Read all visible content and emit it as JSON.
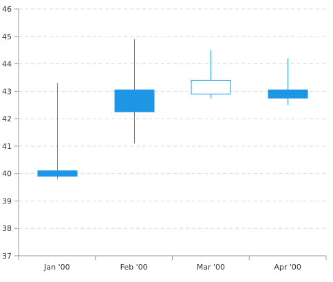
{
  "chart_data": {
    "type": "candlestick",
    "title": "",
    "xlabel": "",
    "ylabel": "",
    "categories": [
      "Jan '00",
      "Feb '00",
      "Mar '00",
      "Apr '00"
    ],
    "series": [
      {
        "open": [
          39.9,
          42.25,
          42.9,
          42.75
        ],
        "high": [
          43.3,
          44.9,
          44.5,
          44.2
        ],
        "low": [
          39.8,
          41.1,
          42.75,
          42.5
        ],
        "close": [
          40.1,
          43.05,
          43.4,
          43.05
        ]
      }
    ],
    "ylim": [
      37,
      46
    ],
    "yticks": [
      "37",
      "38",
      "39",
      "40",
      "41",
      "42",
      "43",
      "44",
      "45",
      "46"
    ],
    "grid": true,
    "legend": "none",
    "colors": {
      "bearish_fill": "#1E96E6",
      "bullish_stroke": "#1E96E6",
      "gridline": "#D9D9D9",
      "axis": "#999999",
      "text": "#333333"
    }
  }
}
